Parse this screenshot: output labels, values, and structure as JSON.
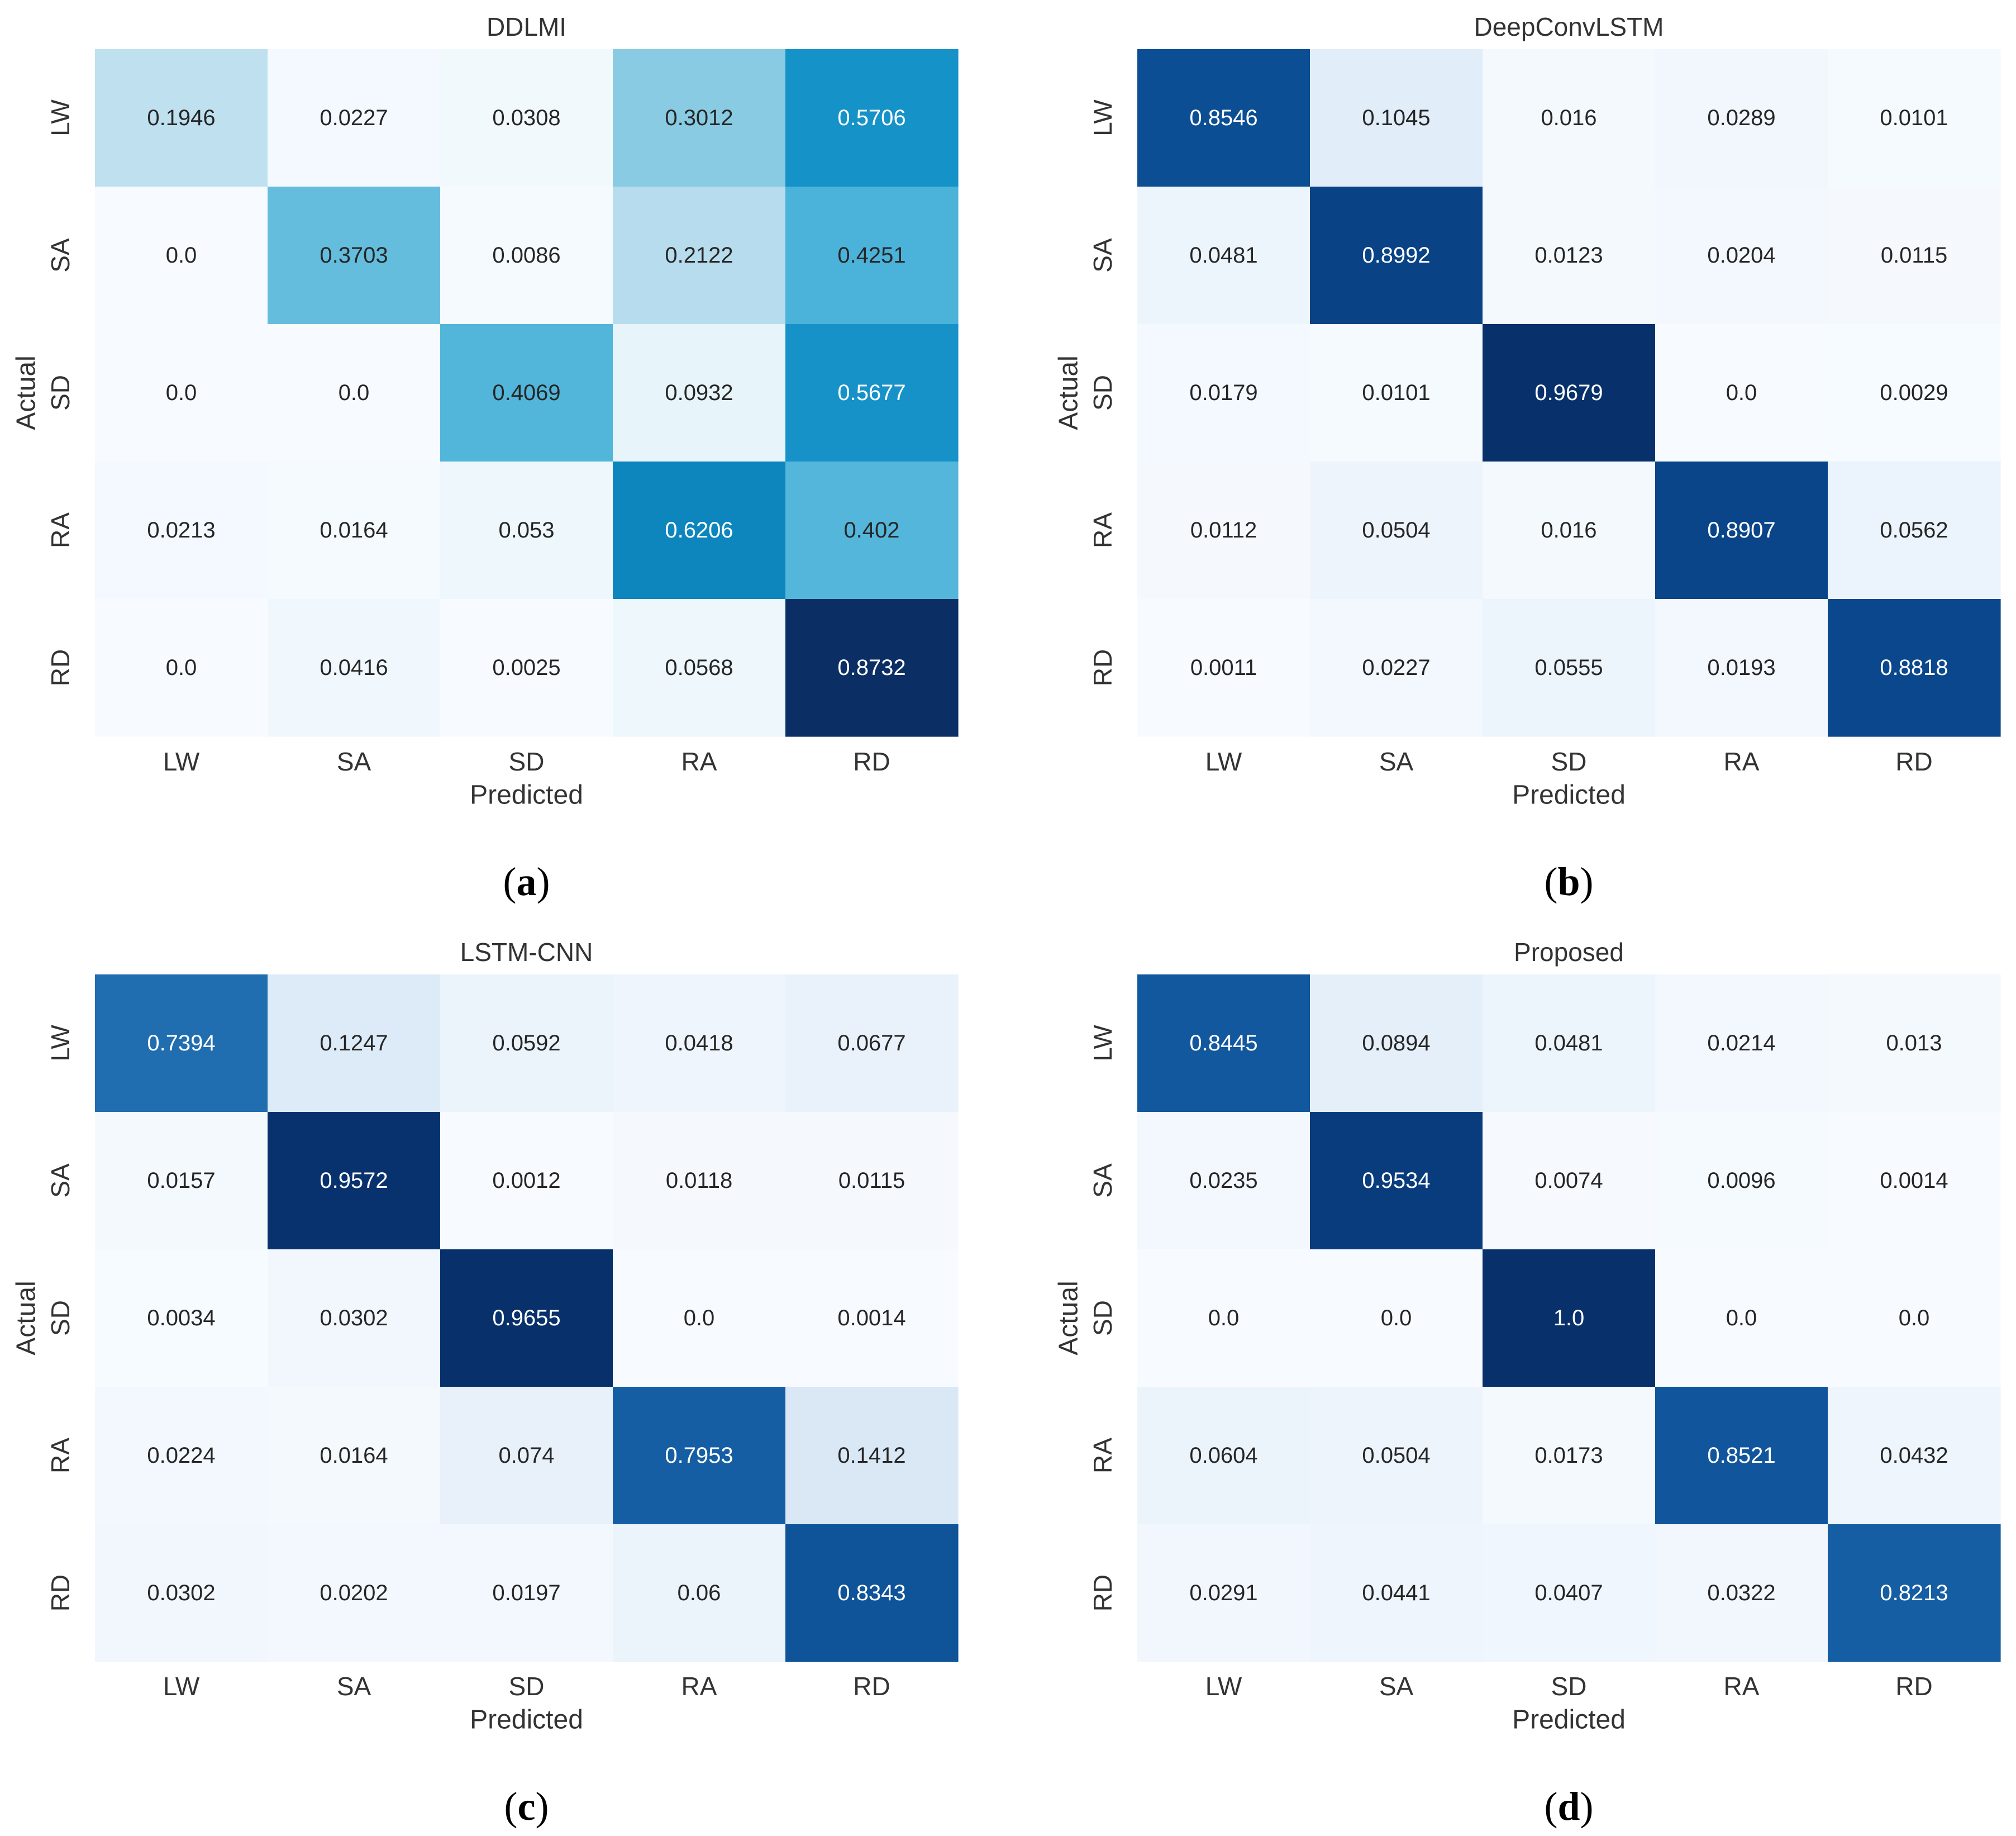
{
  "chart_data": [
    {
      "type": "heatmap",
      "panel": "a",
      "title": "DDLMI",
      "xlabel": "Predicted",
      "ylabel": "Actual",
      "x_categories": [
        "LW",
        "SA",
        "SD",
        "RA",
        "RD"
      ],
      "y_categories": [
        "LW",
        "SA",
        "SD",
        "RA",
        "RD"
      ],
      "values": [
        [
          0.1946,
          0.0227,
          0.0308,
          0.3012,
          0.5706
        ],
        [
          0.0,
          0.3703,
          0.0086,
          0.2122,
          0.4251
        ],
        [
          0.0,
          0.0,
          0.4069,
          0.0932,
          0.5677
        ],
        [
          0.0213,
          0.0164,
          0.053,
          0.6206,
          0.402
        ],
        [
          0.0,
          0.0416,
          0.0025,
          0.0568,
          0.8732
        ]
      ],
      "cell_labels": [
        [
          "0.1946",
          "0.0227",
          "0.0308",
          "0.3012",
          "0.5706"
        ],
        [
          "0.0",
          "0.3703",
          "0.0086",
          "0.2122",
          "0.4251"
        ],
        [
          "0.0",
          "0.0",
          "0.4069",
          "0.0932",
          "0.5677"
        ],
        [
          "0.0213",
          "0.0164",
          "0.053",
          "0.6206",
          "0.402"
        ],
        [
          "0.0",
          "0.0416",
          "0.0025",
          "0.0568",
          "0.8732"
        ]
      ],
      "colormap": [
        "#f7fbff",
        "#e6f4fa",
        "#bfe0ef",
        "#8fcde3",
        "#5ab9db",
        "#32a6d7",
        "#118fc5",
        "#0677b2",
        "#0b4f8c",
        "#0b2f64"
      ]
    },
    {
      "type": "heatmap",
      "panel": "b",
      "title": "DeepConvLSTM",
      "xlabel": "Predicted",
      "ylabel": "Actual",
      "x_categories": [
        "LW",
        "SA",
        "SD",
        "RA",
        "RD"
      ],
      "y_categories": [
        "LW",
        "SA",
        "SD",
        "RA",
        "RD"
      ],
      "values": [
        [
          0.8546,
          0.1045,
          0.016,
          0.0289,
          0.0101
        ],
        [
          0.0481,
          0.8992,
          0.0123,
          0.0204,
          0.0115
        ],
        [
          0.0179,
          0.0101,
          0.9679,
          0.0,
          0.0029
        ],
        [
          0.0112,
          0.0504,
          0.016,
          0.8907,
          0.0562
        ],
        [
          0.0011,
          0.0227,
          0.0555,
          0.0193,
          0.8818
        ]
      ],
      "cell_labels": [
        [
          "0.8546",
          "0.1045",
          "0.016",
          "0.0289",
          "0.0101"
        ],
        [
          "0.0481",
          "0.8992",
          "0.0123",
          "0.0204",
          "0.0115"
        ],
        [
          "0.0179",
          "0.0101",
          "0.9679",
          "0.0",
          "0.0029"
        ],
        [
          "0.0112",
          "0.0504",
          "0.016",
          "0.8907",
          "0.0562"
        ],
        [
          "0.0011",
          "0.0227",
          "0.0555",
          "0.0193",
          "0.8818"
        ]
      ],
      "colormap": [
        "#f7fbff",
        "#e3eef9",
        "#cfe1f2",
        "#b5d4e9",
        "#93c3df",
        "#6daed5",
        "#4b97c9",
        "#2f7ebc",
        "#1864aa",
        "#0a4a90",
        "#08306b"
      ]
    },
    {
      "type": "heatmap",
      "panel": "c",
      "title": "LSTM-CNN",
      "xlabel": "Predicted",
      "ylabel": "Actual",
      "x_categories": [
        "LW",
        "SA",
        "SD",
        "RA",
        "RD"
      ],
      "y_categories": [
        "LW",
        "SA",
        "SD",
        "RA",
        "RD"
      ],
      "values": [
        [
          0.7394,
          0.1247,
          0.0592,
          0.0418,
          0.0677
        ],
        [
          0.0157,
          0.9572,
          0.0012,
          0.0118,
          0.0115
        ],
        [
          0.0034,
          0.0302,
          0.9655,
          0.0,
          0.0014
        ],
        [
          0.0224,
          0.0164,
          0.074,
          0.7953,
          0.1412
        ],
        [
          0.0302,
          0.0202,
          0.0197,
          0.06,
          0.8343
        ]
      ],
      "cell_labels": [
        [
          "0.7394",
          "0.1247",
          "0.0592",
          "0.0418",
          "0.0677"
        ],
        [
          "0.0157",
          "0.9572",
          "0.0012",
          "0.0118",
          "0.0115"
        ],
        [
          "0.0034",
          "0.0302",
          "0.9655",
          "0.0",
          "0.0014"
        ],
        [
          "0.0224",
          "0.0164",
          "0.074",
          "0.7953",
          "0.1412"
        ],
        [
          "0.0302",
          "0.0202",
          "0.0197",
          "0.06",
          "0.8343"
        ]
      ],
      "colormap": [
        "#f7fbff",
        "#e3eef9",
        "#cfe1f2",
        "#b5d4e9",
        "#93c3df",
        "#6daed5",
        "#4b97c9",
        "#2f7ebc",
        "#1864aa",
        "#0a4a90",
        "#08306b"
      ]
    },
    {
      "type": "heatmap",
      "panel": "d",
      "title": "Proposed",
      "xlabel": "Predicted",
      "ylabel": "Actual",
      "x_categories": [
        "LW",
        "SA",
        "SD",
        "RA",
        "RD"
      ],
      "y_categories": [
        "LW",
        "SA",
        "SD",
        "RA",
        "RD"
      ],
      "values": [
        [
          0.8445,
          0.0894,
          0.0481,
          0.0214,
          0.013
        ],
        [
          0.0235,
          0.9534,
          0.0074,
          0.0096,
          0.0014
        ],
        [
          0.0,
          0.0,
          1.0,
          0.0,
          0.0
        ],
        [
          0.0604,
          0.0504,
          0.0173,
          0.8521,
          0.0432
        ],
        [
          0.0291,
          0.0441,
          0.0407,
          0.0322,
          0.8213
        ]
      ],
      "cell_labels": [
        [
          "0.8445",
          "0.0894",
          "0.0481",
          "0.0214",
          "0.013"
        ],
        [
          "0.0235",
          "0.9534",
          "0.0074",
          "0.0096",
          "0.0014"
        ],
        [
          "0.0",
          "0.0",
          "1.0",
          "0.0",
          "0.0"
        ],
        [
          "0.0604",
          "0.0504",
          "0.0173",
          "0.8521",
          "0.0432"
        ],
        [
          "0.0291",
          "0.0441",
          "0.0407",
          "0.0322",
          "0.8213"
        ]
      ],
      "colormap": [
        "#f7fbff",
        "#e3eef9",
        "#cfe1f2",
        "#b5d4e9",
        "#93c3df",
        "#6daed5",
        "#4b97c9",
        "#2f7ebc",
        "#1864aa",
        "#0a4a90",
        "#08306b"
      ]
    }
  ]
}
